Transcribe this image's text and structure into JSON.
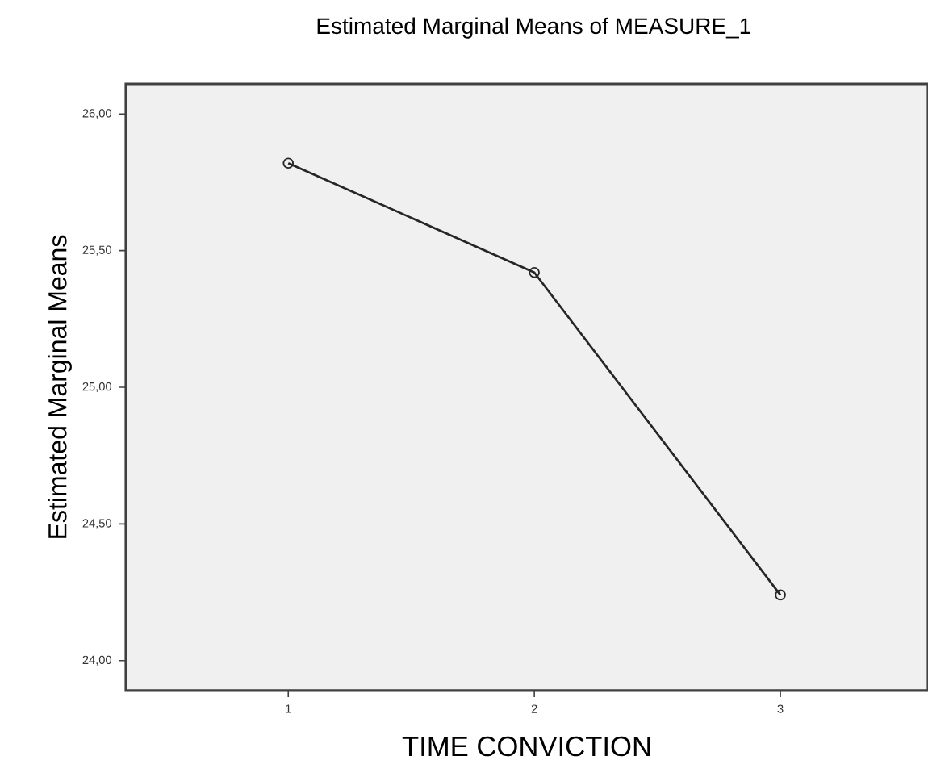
{
  "chart_data": {
    "type": "line",
    "title": "Estimated Marginal Means of MEASURE_1",
    "xlabel": "TIME CONVICTION",
    "ylabel": "Estimated Marginal Means",
    "x": [
      1,
      2,
      3
    ],
    "series": [
      {
        "color": "#262626",
        "values": [
          25.82,
          25.42,
          24.24
        ]
      }
    ],
    "xlim": [
      0.34,
      3.6
    ],
    "xticks": [
      1,
      2,
      3
    ],
    "ylim": [
      23.89,
      26.11
    ],
    "yticks": [
      {
        "value": 24,
        "label": "24,00"
      },
      {
        "value": 24.5,
        "label": "24,50"
      },
      {
        "value": 25,
        "label": "25,00"
      },
      {
        "value": 25.5,
        "label": "25,50"
      },
      {
        "value": 26,
        "label": "26,00"
      }
    ],
    "marker": "circle",
    "line_style": "solid",
    "grid": false
  }
}
